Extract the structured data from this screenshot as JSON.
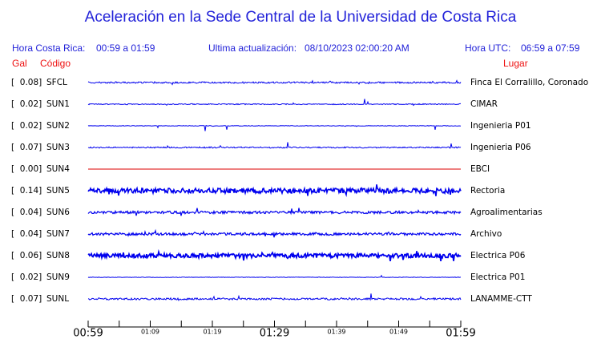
{
  "header": {
    "title": "Aceleración en la Sede Central de la Universidad de Costa Rica",
    "local_label": "Hora Costa Rica:",
    "local_range": "00:59 a 01:59",
    "update_label": "Ultima actualización:",
    "update_time": "08/10/2023 02:00:20 AM",
    "utc_label": "Hora UTC:",
    "utc_range": "06:59 a 07:59",
    "gal_heading": "Gal",
    "code_heading": "Código",
    "place_heading": "Lugar"
  },
  "stations": [
    {
      "gal": "[  0.08]",
      "code": "SFCL",
      "place": "Finca El Corralillo, Coronado",
      "color": "#0000ee"
    },
    {
      "gal": "[  0.02]",
      "code": "SUN1",
      "place": "CIMAR",
      "color": "#0000ee"
    },
    {
      "gal": "[  0.02]",
      "code": "SUN2",
      "place": "Ingenieria P01",
      "color": "#0000ee"
    },
    {
      "gal": "[  0.07]",
      "code": "SUN3",
      "place": "Ingenieria P06",
      "color": "#0000ee"
    },
    {
      "gal": "[  0.00]",
      "code": "SUN4",
      "place": "EBCI",
      "color": "#dd0000"
    },
    {
      "gal": "[  0.14]",
      "code": "SUN5",
      "place": "Rectoria",
      "color": "#0000ee"
    },
    {
      "gal": "[  0.04]",
      "code": "SUN6",
      "place": "Agroalimentarias",
      "color": "#0000ee"
    },
    {
      "gal": "[  0.04]",
      "code": "SUN7",
      "place": "Archivo",
      "color": "#0000ee"
    },
    {
      "gal": "[  0.06]",
      "code": "SUN8",
      "place": "Electrica P06",
      "color": "#0000ee"
    },
    {
      "gal": "[  0.02]",
      "code": "SUN9",
      "place": "Electrica P01",
      "color": "#0000ee"
    },
    {
      "gal": "[  0.07]",
      "code": "SUNL",
      "place": "LANAMME-CTT",
      "color": "#0000ee"
    }
  ],
  "time_axis": [
    "00:59",
    "01:09",
    "01:19",
    "01:29",
    "01:39",
    "01:49",
    "01:59"
  ]
}
